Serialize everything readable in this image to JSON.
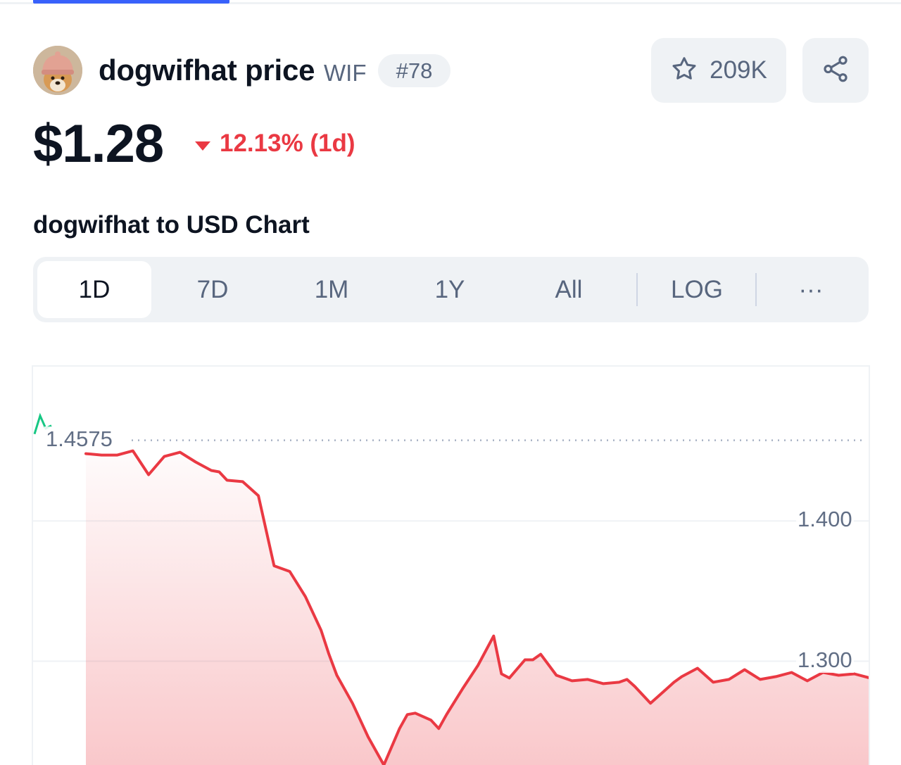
{
  "coin": {
    "name_label": "dogwifhat price",
    "symbol": "WIF",
    "rank": "#78"
  },
  "actions": {
    "watchlist_count": "209K"
  },
  "price": {
    "value": "$1.28",
    "change": "12.13% (1d)",
    "direction": "down"
  },
  "chart_heading": "dogwifhat to USD Chart",
  "range_tabs": [
    "1D",
    "7D",
    "1M",
    "1Y",
    "All",
    "LOG",
    "···"
  ],
  "active_range": "1D",
  "colors": {
    "accent": "#3861fb",
    "negative": "#ea3943",
    "positive": "#16c784",
    "surface": "#eff2f5",
    "muted_text": "#58667e"
  },
  "chart_data": {
    "type": "area",
    "reference_label": "1.4575",
    "reference_value": 1.4575,
    "ylim": [
      1.225,
      1.51
    ],
    "yticks": [
      "1.400",
      "1.300"
    ],
    "ytick_values": [
      1.4,
      1.3
    ],
    "grid": true,
    "start_series": {
      "color": "#16c784",
      "x": [
        0,
        1,
        2,
        3
      ],
      "y": [
        1.462,
        1.475,
        1.466,
        1.468
      ]
    },
    "series": {
      "color": "#ea3943",
      "x": [
        0,
        2,
        4,
        6,
        8,
        10,
        12,
        14,
        16,
        17,
        18,
        20,
        22,
        24,
        26,
        28,
        30,
        31,
        32,
        34,
        36,
        38,
        40,
        41,
        42,
        44,
        45,
        46,
        48,
        50,
        52,
        53,
        54,
        56,
        57,
        58,
        60,
        62,
        64,
        66,
        68,
        69,
        70,
        72,
        74,
        75,
        76,
        78,
        79,
        80,
        82,
        84,
        86,
        88,
        90,
        92,
        94,
        96,
        98,
        100
      ],
      "y": [
        1.448,
        1.447,
        1.447,
        1.45,
        1.433,
        1.446,
        1.449,
        1.442,
        1.436,
        1.435,
        1.429,
        1.428,
        1.418,
        1.368,
        1.364,
        1.346,
        1.322,
        1.305,
        1.29,
        1.27,
        1.246,
        1.226,
        1.252,
        1.262,
        1.263,
        1.258,
        1.252,
        1.262,
        1.28,
        1.297,
        1.318,
        1.291,
        1.288,
        1.301,
        1.301,
        1.305,
        1.29,
        1.286,
        1.287,
        1.284,
        1.285,
        1.287,
        1.282,
        1.27,
        1.28,
        1.285,
        1.289,
        1.295,
        1.29,
        1.285,
        1.287,
        1.294,
        1.287,
        1.289,
        1.292,
        1.286,
        1.292,
        1.29,
        1.291,
        1.288
      ]
    }
  }
}
